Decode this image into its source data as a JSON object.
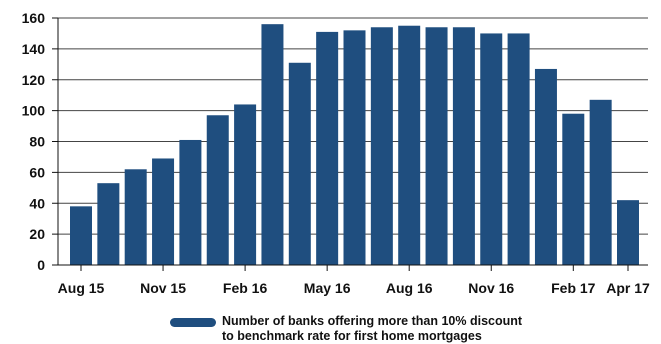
{
  "chart_data": {
    "type": "bar",
    "categories": [
      "Aug 15",
      "Sep 15",
      "Oct 15",
      "Nov 15",
      "Dec 15",
      "Jan 16",
      "Feb 16",
      "Mar 16",
      "Apr 16",
      "May 16",
      "Jun 16",
      "Jul 16",
      "Aug 16",
      "Sep 16",
      "Oct 16",
      "Nov 16",
      "Dec 16",
      "Jan 17",
      "Feb 17",
      "Mar 17",
      "Apr 17"
    ],
    "x_tick_labels": [
      "Aug 15",
      "Nov 15",
      "Feb 16",
      "May 16",
      "Aug 16",
      "Nov 16",
      "Feb 17",
      "Apr 17"
    ],
    "x_tick_categories": [
      "Aug 15",
      "Nov 15",
      "Feb 16",
      "May 16",
      "Aug 16",
      "Nov 16",
      "Feb 17",
      "Apr 17"
    ],
    "series": [
      {
        "name": "Number of banks offering more than 10% discount to benchmark rate for first home mortgages",
        "values": [
          38,
          53,
          62,
          69,
          81,
          97,
          104,
          156,
          131,
          151,
          152,
          154,
          155,
          154,
          154,
          150,
          150,
          127,
          98,
          107,
          42
        ]
      }
    ],
    "ylim": [
      0,
      160
    ],
    "y_ticks": [
      0,
      20,
      40,
      60,
      80,
      100,
      120,
      140,
      160
    ],
    "grid": true,
    "legend_position": "bottom",
    "colors": {
      "bar": "#1f4e7f",
      "grid": "#444444",
      "axis": "#111111"
    }
  },
  "legend": {
    "label_line1": "Number of banks offering more than 10% discount",
    "label_line2": "to benchmark rate for first home mortgages"
  }
}
